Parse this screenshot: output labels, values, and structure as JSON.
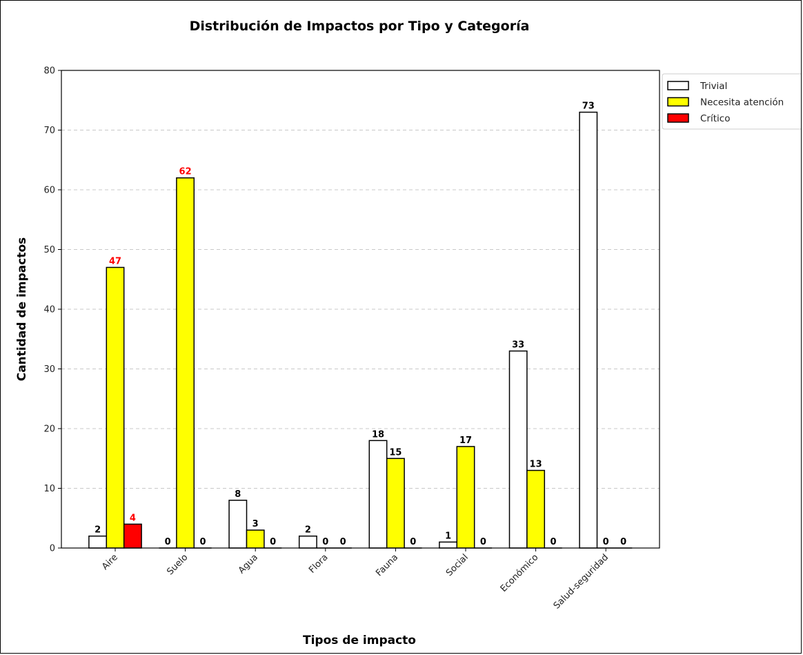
{
  "chart_data": {
    "type": "bar",
    "title": "Distribución de Impactos por Tipo y Categoría",
    "xlabel": "Tipos de impacto",
    "ylabel": "Cantidad de impactos",
    "ylim": [
      0,
      80
    ],
    "yticks": [
      0,
      10,
      20,
      30,
      40,
      50,
      60,
      70,
      80
    ],
    "grid": "horizontal dashed",
    "legend_position": "top-right",
    "categories": [
      "Aire",
      "Suelo",
      "Agua",
      "Flora",
      "Fauna",
      "Social",
      "Económico",
      "Salud-seguridad"
    ],
    "series": [
      {
        "name": "Trivial",
        "color": "#ffffff",
        "values": [
          2,
          0,
          8,
          2,
          18,
          1,
          33,
          73
        ]
      },
      {
        "name": "Necesita atención",
        "color": "#ffff00",
        "values": [
          47,
          62,
          3,
          0,
          15,
          17,
          13,
          0
        ]
      },
      {
        "name": "Crítico",
        "color": "#ff0000",
        "values": [
          4,
          0,
          0,
          0,
          0,
          0,
          0,
          0
        ]
      }
    ],
    "highlight_label_color": "#ff0000",
    "highlight_labels": [
      {
        "series": "Necesita atención",
        "category": "Aire"
      },
      {
        "series": "Necesita atención",
        "category": "Suelo"
      },
      {
        "series": "Crítico",
        "category": "Aire"
      }
    ]
  }
}
